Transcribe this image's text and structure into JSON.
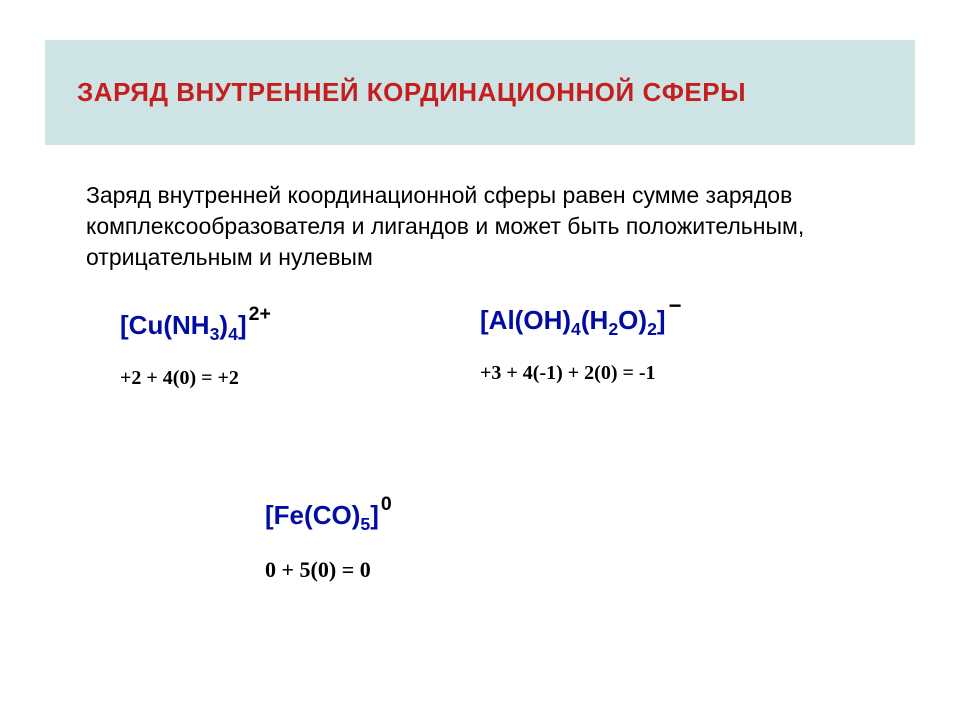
{
  "title": "ЗАРЯД ВНУТРЕННЕЙ КОРДИНАЦИОННОЙ СФЕРЫ",
  "description": "Заряд внутренней координационной сферы равен сумме зарядов комплексообразователя и лигандов и может быть положительным, отрицательным и нулевым",
  "formula1": {
    "left_bracket": "[",
    "metal": "Cu",
    "lig1_open": "(",
    "lig1_el1": "N",
    "lig1_el2": "H",
    "lig1_sub": "3",
    "lig1_close": ")",
    "lig1_count": "4",
    "right_bracket": "]",
    "charge": "2+",
    "calc": "+2 + 4(0) = +2"
  },
  "formula2": {
    "left_bracket": "[",
    "metal": "Al",
    "lig1_open": "(",
    "lig1_el1": "O",
    "lig1_el2": "H",
    "lig1_close": ")",
    "lig1_count": "4",
    "lig2_open": "(",
    "lig2_el1": "H",
    "lig2_sub1": "2",
    "lig2_el2": "O",
    "lig2_close": ")",
    "lig2_count": "2",
    "right_bracket": "]",
    "charge": "−",
    "calc": "+3 + 4(-1) + 2(0) = -1"
  },
  "formula3": {
    "left_bracket": "[",
    "metal": "Fe",
    "lig1_open": "(",
    "lig1_el1": "C",
    "lig1_el2": "O",
    "lig1_close": ")",
    "lig1_count": "5",
    "right_bracket": "]",
    "charge": "0",
    "calc": "0 + 5(0) = 0"
  },
  "colors": {
    "title_bg": "#cee4e4",
    "title_text": "#c41e1e",
    "body_text": "#000000",
    "formula_text": "#000ca5",
    "background": "#ffffff"
  }
}
